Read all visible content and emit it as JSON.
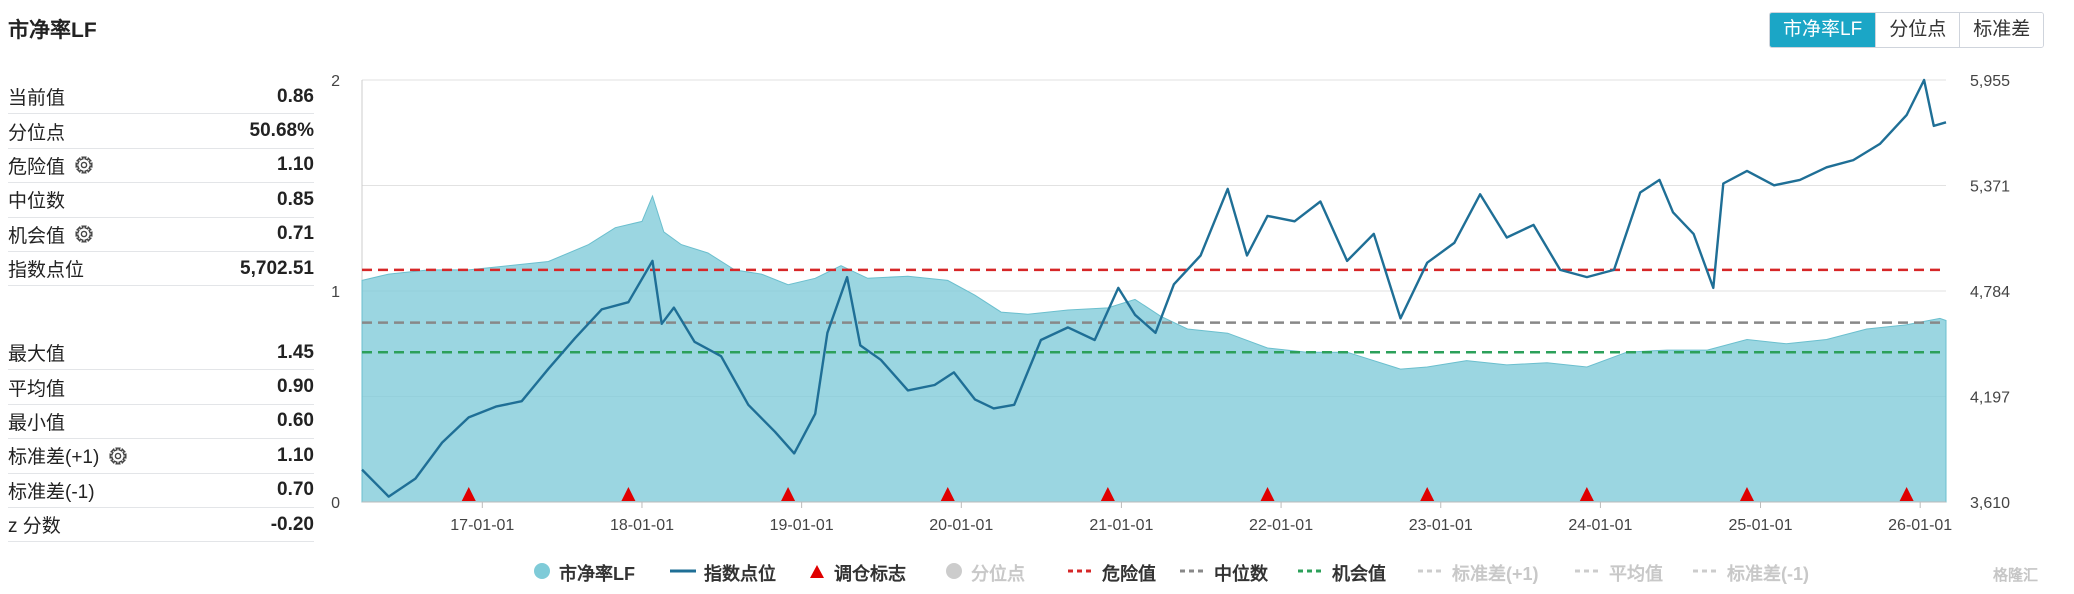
{
  "title": "市净率LF",
  "tabs": [
    {
      "label": "市净率LF",
      "active": true
    },
    {
      "label": "分位点",
      "active": false
    },
    {
      "label": "标准差",
      "active": false
    }
  ],
  "stats_top": [
    {
      "label": "当前值",
      "value": "0.86",
      "gear": false
    },
    {
      "label": "分位点",
      "value": "50.68%",
      "gear": false
    },
    {
      "label": "危险值",
      "value": "1.10",
      "gear": true
    },
    {
      "label": "中位数",
      "value": "0.85",
      "gear": false
    },
    {
      "label": "机会值",
      "value": "0.71",
      "gear": true
    },
    {
      "label": "指数点位",
      "value": "5,702.51",
      "gear": false
    }
  ],
  "stats_bottom": [
    {
      "label": "最大值",
      "value": "1.45",
      "gear": false
    },
    {
      "label": "平均值",
      "value": "0.90",
      "gear": false
    },
    {
      "label": "最小值",
      "value": "0.60",
      "gear": false
    },
    {
      "label": "标准差(+1)",
      "value": "1.10",
      "gear": true
    },
    {
      "label": "标准差(-1)",
      "value": "0.70",
      "gear": false
    },
    {
      "label": "z 分数",
      "value": "-0.20",
      "gear": false
    }
  ],
  "legend": [
    {
      "label": "市净率LF",
      "symbol": "circle",
      "color": "#7fcbd8",
      "enabled": true
    },
    {
      "label": "指数点位",
      "symbol": "line",
      "color": "#1f6f96",
      "enabled": true
    },
    {
      "label": "调仓标志",
      "symbol": "triangle",
      "color": "#e00000",
      "enabled": true
    },
    {
      "label": "分位点",
      "symbol": "circle",
      "color": "#cccccc",
      "enabled": false
    },
    {
      "label": "危险值",
      "symbol": "dash",
      "color": "#d62728",
      "enabled": true
    },
    {
      "label": "中位数",
      "symbol": "dash",
      "color": "#888888",
      "enabled": true
    },
    {
      "label": "机会值",
      "symbol": "dash",
      "color": "#2ca05a",
      "enabled": true
    },
    {
      "label": "标准差(+1)",
      "symbol": "dash",
      "color": "#cccccc",
      "enabled": false
    },
    {
      "label": "平均值",
      "symbol": "dash",
      "color": "#cccccc",
      "enabled": false
    },
    {
      "label": "标准差(-1)",
      "symbol": "dash",
      "color": "#cccccc",
      "enabled": false
    }
  ],
  "watermark": "格隆汇",
  "chart_data": {
    "type": "area",
    "x_start": "2016-04-01",
    "x_end": "2026-03-01",
    "x_ticks": [
      {
        "date": "2017-01-01",
        "label": "17-01-01"
      },
      {
        "date": "2018-01-01",
        "label": "18-01-01"
      },
      {
        "date": "2019-01-01",
        "label": "19-01-01"
      },
      {
        "date": "2020-01-01",
        "label": "20-01-01"
      },
      {
        "date": "2021-01-01",
        "label": "21-01-01"
      },
      {
        "date": "2022-01-01",
        "label": "22-01-01"
      },
      {
        "date": "2023-01-01",
        "label": "23-01-01"
      },
      {
        "date": "2024-01-01",
        "label": "24-01-01"
      },
      {
        "date": "2025-01-01",
        "label": "25-01-01"
      },
      {
        "date": "2026-01-01",
        "label": "26-01-01"
      }
    ],
    "y_left": {
      "range": [
        0,
        2
      ],
      "ticks": [
        "0",
        "1",
        "2"
      ]
    },
    "y_right": {
      "range": [
        3610,
        5955
      ],
      "ticks": [
        "3,610",
        "4,197",
        "4,784",
        "5,371",
        "5,955"
      ]
    },
    "grid": true,
    "reference_lines": [
      {
        "name": "危险值",
        "value": 1.1,
        "color": "#d62728"
      },
      {
        "name": "中位数",
        "value": 0.85,
        "color": "#888888"
      },
      {
        "name": "机会值",
        "value": 0.71,
        "color": "#2ca05a"
      }
    ],
    "rebalance_markers": [
      "2016-12-01",
      "2017-12-01",
      "2018-12-01",
      "2019-12-01",
      "2020-12-01",
      "2021-12-01",
      "2022-12-01",
      "2023-12-01",
      "2024-12-01",
      "2025-12-01"
    ],
    "series": [
      {
        "name": "市净率LF",
        "axis": "left",
        "color": "#7fcbd8",
        "points": [
          [
            "2016-04-01",
            1.05
          ],
          [
            "2016-06-01",
            1.08
          ],
          [
            "2016-09-01",
            1.1
          ],
          [
            "2016-12-01",
            1.1
          ],
          [
            "2017-03-01",
            1.12
          ],
          [
            "2017-06-01",
            1.14
          ],
          [
            "2017-09-01",
            1.22
          ],
          [
            "2017-11-01",
            1.3
          ],
          [
            "2018-01-01",
            1.33
          ],
          [
            "2018-01-25",
            1.45
          ],
          [
            "2018-02-20",
            1.28
          ],
          [
            "2018-04-01",
            1.22
          ],
          [
            "2018-06-01",
            1.18
          ],
          [
            "2018-08-01",
            1.1
          ],
          [
            "2018-10-01",
            1.08
          ],
          [
            "2018-12-01",
            1.03
          ],
          [
            "2019-02-01",
            1.06
          ],
          [
            "2019-04-01",
            1.12
          ],
          [
            "2019-06-01",
            1.06
          ],
          [
            "2019-09-01",
            1.07
          ],
          [
            "2019-12-01",
            1.05
          ],
          [
            "2020-02-01",
            0.98
          ],
          [
            "2020-04-01",
            0.9
          ],
          [
            "2020-06-01",
            0.89
          ],
          [
            "2020-09-01",
            0.91
          ],
          [
            "2020-12-01",
            0.92
          ],
          [
            "2021-02-01",
            0.96
          ],
          [
            "2021-04-01",
            0.88
          ],
          [
            "2021-06-01",
            0.82
          ],
          [
            "2021-09-01",
            0.8
          ],
          [
            "2021-12-01",
            0.73
          ],
          [
            "2022-03-01",
            0.71
          ],
          [
            "2022-06-01",
            0.71
          ],
          [
            "2022-10-01",
            0.63
          ],
          [
            "2022-12-01",
            0.64
          ],
          [
            "2023-03-01",
            0.67
          ],
          [
            "2023-06-01",
            0.65
          ],
          [
            "2023-09-01",
            0.66
          ],
          [
            "2023-12-01",
            0.64
          ],
          [
            "2024-03-01",
            0.71
          ],
          [
            "2024-06-01",
            0.72
          ],
          [
            "2024-09-01",
            0.72
          ],
          [
            "2024-12-01",
            0.77
          ],
          [
            "2025-03-01",
            0.75
          ],
          [
            "2025-06-01",
            0.77
          ],
          [
            "2025-09-01",
            0.82
          ],
          [
            "2025-12-01",
            0.84
          ],
          [
            "2026-02-15",
            0.87
          ],
          [
            "2026-03-01",
            0.86
          ]
        ]
      },
      {
        "name": "指数点位",
        "axis": "right",
        "color": "#1f6f96",
        "points": [
          [
            "2016-04-01",
            3790
          ],
          [
            "2016-06-01",
            3640
          ],
          [
            "2016-08-01",
            3740
          ],
          [
            "2016-10-01",
            3940
          ],
          [
            "2016-12-01",
            4080
          ],
          [
            "2017-02-01",
            4140
          ],
          [
            "2017-04-01",
            4170
          ],
          [
            "2017-06-01",
            4350
          ],
          [
            "2017-08-01",
            4520
          ],
          [
            "2017-10-01",
            4680
          ],
          [
            "2017-12-01",
            4720
          ],
          [
            "2018-01-25",
            4950
          ],
          [
            "2018-02-15",
            4600
          ],
          [
            "2018-03-15",
            4690
          ],
          [
            "2018-05-01",
            4500
          ],
          [
            "2018-07-01",
            4420
          ],
          [
            "2018-09-01",
            4150
          ],
          [
            "2018-11-01",
            4000
          ],
          [
            "2018-12-15",
            3880
          ],
          [
            "2019-02-01",
            4100
          ],
          [
            "2019-03-01",
            4550
          ],
          [
            "2019-04-15",
            4860
          ],
          [
            "2019-05-15",
            4480
          ],
          [
            "2019-07-01",
            4400
          ],
          [
            "2019-09-01",
            4230
          ],
          [
            "2019-11-01",
            4260
          ],
          [
            "2019-12-15",
            4330
          ],
          [
            "2020-02-01",
            4180
          ],
          [
            "2020-03-15",
            4130
          ],
          [
            "2020-05-01",
            4150
          ],
          [
            "2020-07-01",
            4510
          ],
          [
            "2020-09-01",
            4580
          ],
          [
            "2020-11-01",
            4510
          ],
          [
            "2020-12-25",
            4800
          ],
          [
            "2021-02-01",
            4650
          ],
          [
            "2021-03-20",
            4550
          ],
          [
            "2021-05-01",
            4820
          ],
          [
            "2021-07-01",
            4980
          ],
          [
            "2021-09-01",
            5350
          ],
          [
            "2021-10-15",
            4980
          ],
          [
            "2021-12-01",
            5200
          ],
          [
            "2022-02-01",
            5170
          ],
          [
            "2022-04-01",
            5280
          ],
          [
            "2022-06-01",
            4950
          ],
          [
            "2022-08-01",
            5100
          ],
          [
            "2022-10-01",
            4630
          ],
          [
            "2022-12-01",
            4940
          ],
          [
            "2023-02-01",
            5050
          ],
          [
            "2023-04-01",
            5320
          ],
          [
            "2023-06-01",
            5080
          ],
          [
            "2023-08-01",
            5150
          ],
          [
            "2023-10-01",
            4900
          ],
          [
            "2023-12-01",
            4860
          ],
          [
            "2024-02-01",
            4900
          ],
          [
            "2024-04-01",
            5330
          ],
          [
            "2024-05-15",
            5400
          ],
          [
            "2024-06-15",
            5220
          ],
          [
            "2024-08-01",
            5100
          ],
          [
            "2024-09-15",
            4800
          ],
          [
            "2024-10-08",
            5380
          ],
          [
            "2024-12-01",
            5450
          ],
          [
            "2025-02-01",
            5370
          ],
          [
            "2025-04-01",
            5400
          ],
          [
            "2025-06-01",
            5470
          ],
          [
            "2025-08-01",
            5510
          ],
          [
            "2025-10-01",
            5600
          ],
          [
            "2025-12-01",
            5760
          ],
          [
            "2026-01-10",
            5955
          ],
          [
            "2026-02-01",
            5700
          ],
          [
            "2026-03-01",
            5720
          ]
        ]
      }
    ]
  }
}
